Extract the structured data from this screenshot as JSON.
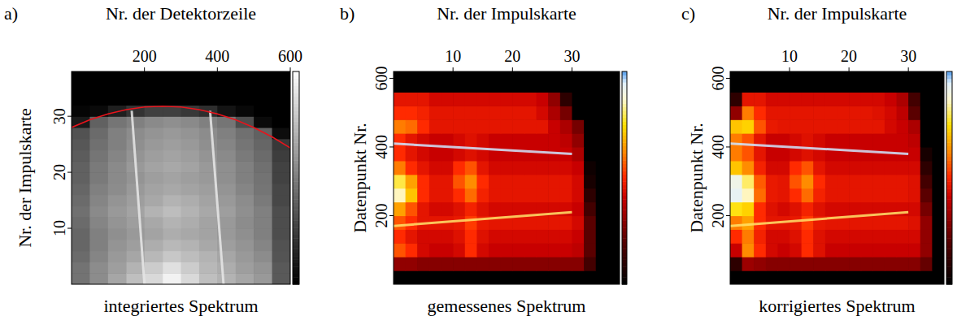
{
  "chart_data": [
    {
      "type": "heatmap",
      "label": "a)",
      "xlabel": "Nr. der Detektorzeile",
      "ylabel": "Nr. der Impulskarte",
      "title": "integriertes Spektrum",
      "xlim": [
        0,
        600
      ],
      "ylim": [
        0,
        38
      ],
      "xticks": [
        200,
        400,
        600
      ],
      "yticks": [
        10,
        20,
        30
      ],
      "zlim": [
        0,
        1
      ],
      "color": "gray",
      "x_edges": [
        0,
        50,
        100,
        150,
        200,
        250,
        300,
        350,
        400,
        450,
        500,
        550,
        600
      ],
      "y_edges": [
        0,
        2,
        4,
        6,
        8,
        10,
        12,
        14,
        16,
        18,
        20,
        22,
        24,
        26,
        28,
        30,
        32,
        34,
        36,
        38
      ],
      "z": [
        [
          0.45,
          0.55,
          0.65,
          0.75,
          0.85,
          0.95,
          0.85,
          0.75,
          0.7,
          0.65,
          0.6,
          0.35
        ],
        [
          0.45,
          0.55,
          0.62,
          0.7,
          0.8,
          0.88,
          0.8,
          0.72,
          0.68,
          0.62,
          0.58,
          0.35
        ],
        [
          0.42,
          0.52,
          0.6,
          0.65,
          0.72,
          0.78,
          0.74,
          0.7,
          0.65,
          0.6,
          0.55,
          0.33
        ],
        [
          0.4,
          0.5,
          0.58,
          0.62,
          0.68,
          0.72,
          0.7,
          0.66,
          0.62,
          0.58,
          0.52,
          0.32
        ],
        [
          0.4,
          0.5,
          0.56,
          0.6,
          0.64,
          0.68,
          0.66,
          0.64,
          0.6,
          0.56,
          0.5,
          0.3
        ],
        [
          0.42,
          0.52,
          0.58,
          0.62,
          0.66,
          0.7,
          0.68,
          0.64,
          0.6,
          0.55,
          0.5,
          0.3
        ],
        [
          0.44,
          0.54,
          0.6,
          0.64,
          0.7,
          0.74,
          0.7,
          0.66,
          0.62,
          0.56,
          0.5,
          0.3
        ],
        [
          0.42,
          0.52,
          0.58,
          0.62,
          0.66,
          0.7,
          0.68,
          0.64,
          0.6,
          0.55,
          0.48,
          0.28
        ],
        [
          0.4,
          0.5,
          0.55,
          0.6,
          0.64,
          0.66,
          0.64,
          0.62,
          0.58,
          0.52,
          0.46,
          0.28
        ],
        [
          0.38,
          0.48,
          0.54,
          0.58,
          0.62,
          0.64,
          0.62,
          0.6,
          0.56,
          0.5,
          0.45,
          0.26
        ],
        [
          0.38,
          0.48,
          0.54,
          0.6,
          0.64,
          0.66,
          0.64,
          0.6,
          0.56,
          0.5,
          0.44,
          0.26
        ],
        [
          0.36,
          0.46,
          0.52,
          0.58,
          0.62,
          0.64,
          0.62,
          0.58,
          0.54,
          0.48,
          0.42,
          0.24
        ],
        [
          0.34,
          0.44,
          0.5,
          0.56,
          0.6,
          0.62,
          0.6,
          0.56,
          0.52,
          0.46,
          0.4,
          0.22
        ],
        [
          0.32,
          0.42,
          0.5,
          0.55,
          0.58,
          0.6,
          0.58,
          0.55,
          0.5,
          0.44,
          0.38,
          0.05
        ],
        [
          0.1,
          0.38,
          0.46,
          0.5,
          0.54,
          0.56,
          0.54,
          0.5,
          0.46,
          0.3,
          0.04,
          0
        ],
        [
          0.02,
          0.04,
          0.12,
          0.2,
          0.25,
          0.25,
          0.22,
          0.18,
          0.08,
          0.03,
          0,
          0
        ],
        [
          0,
          0,
          0,
          0,
          0,
          0,
          0,
          0,
          0,
          0,
          0,
          0
        ],
        [
          0,
          0,
          0,
          0,
          0,
          0,
          0,
          0,
          0,
          0,
          0,
          0
        ],
        [
          0,
          0,
          0,
          0,
          0,
          0,
          0,
          0,
          0,
          0,
          0,
          0
        ]
      ],
      "lines": [
        {
          "x": [
            165,
            200
          ],
          "y": [
            31,
            0
          ],
          "color": "#e8e8e8"
        },
        {
          "x": [
            380,
            417
          ],
          "y": [
            31,
            0
          ],
          "color": "#e8e8e8"
        }
      ],
      "fit": {
        "x": [
          0,
          50,
          100,
          150,
          200,
          250,
          300,
          350,
          400,
          450,
          500,
          550,
          600
        ],
        "y": [
          28.0,
          29.37,
          30.43,
          31.19,
          31.65,
          31.8,
          31.65,
          31.19,
          30.43,
          29.37,
          28.0,
          26.33,
          24.35
        ],
        "color": "#e8141c"
      }
    },
    {
      "type": "heatmap",
      "label": "b)",
      "xlabel": "Nr. der Impulskarte",
      "ylabel": "Datenpunkt Nr.",
      "title": "gemessenes Spektrum",
      "xlim": [
        0,
        38
      ],
      "ylim": [
        0,
        620
      ],
      "xticks": [
        10,
        20,
        30
      ],
      "yticks": [
        200,
        400,
        600
      ],
      "zlim": [
        0,
        1
      ],
      "color": "hot",
      "x_edges": [
        0,
        2,
        4,
        6,
        8,
        10,
        12,
        14,
        16,
        18,
        20,
        22,
        24,
        26,
        28,
        30,
        32,
        34,
        36,
        38
      ],
      "y_edges": [
        0,
        40,
        80,
        120,
        160,
        200,
        240,
        280,
        320,
        360,
        400,
        440,
        480,
        520,
        560,
        600,
        620
      ],
      "z": [
        [
          0,
          0,
          0,
          0,
          0,
          0,
          0,
          0,
          0,
          0,
          0,
          0,
          0,
          0,
          0,
          0,
          0,
          0,
          0
        ],
        [
          0.3,
          0.3,
          0.28,
          0.28,
          0.28,
          0.28,
          0.28,
          0.28,
          0.28,
          0.28,
          0.28,
          0.28,
          0.28,
          0.28,
          0.28,
          0.28,
          0.15,
          0,
          0
        ],
        [
          0.55,
          0.5,
          0.42,
          0.4,
          0.4,
          0.42,
          0.5,
          0.42,
          0.4,
          0.4,
          0.4,
          0.4,
          0.4,
          0.4,
          0.4,
          0.38,
          0.2,
          0,
          0
        ],
        [
          0.5,
          0.45,
          0.42,
          0.42,
          0.42,
          0.44,
          0.5,
          0.44,
          0.42,
          0.42,
          0.42,
          0.42,
          0.42,
          0.42,
          0.42,
          0.4,
          0.2,
          0,
          0
        ],
        [
          0.55,
          0.5,
          0.45,
          0.45,
          0.45,
          0.46,
          0.52,
          0.46,
          0.45,
          0.45,
          0.45,
          0.45,
          0.45,
          0.45,
          0.45,
          0.42,
          0.2,
          0,
          0
        ],
        [
          0.65,
          0.55,
          0.45,
          0.42,
          0.42,
          0.44,
          0.48,
          0.44,
          0.42,
          0.42,
          0.42,
          0.42,
          0.42,
          0.42,
          0.42,
          0.4,
          0.15,
          0,
          0
        ],
        [
          0.85,
          0.7,
          0.5,
          0.45,
          0.45,
          0.5,
          0.58,
          0.48,
          0.45,
          0.45,
          0.45,
          0.45,
          0.45,
          0.45,
          0.45,
          0.42,
          0.1,
          0,
          0
        ],
        [
          0.78,
          0.65,
          0.5,
          0.45,
          0.45,
          0.55,
          0.62,
          0.5,
          0.45,
          0.45,
          0.45,
          0.45,
          0.45,
          0.45,
          0.45,
          0.42,
          0.05,
          0,
          0
        ],
        [
          0.6,
          0.5,
          0.45,
          0.42,
          0.42,
          0.5,
          0.55,
          0.45,
          0.42,
          0.42,
          0.42,
          0.42,
          0.42,
          0.42,
          0.42,
          0.4,
          0.03,
          0,
          0
        ],
        [
          0.5,
          0.45,
          0.42,
          0.4,
          0.4,
          0.42,
          0.44,
          0.42,
          0.4,
          0.4,
          0.4,
          0.4,
          0.4,
          0.4,
          0.4,
          0.35,
          0,
          0,
          0
        ],
        [
          0.5,
          0.45,
          0.42,
          0.4,
          0.4,
          0.42,
          0.44,
          0.42,
          0.4,
          0.4,
          0.4,
          0.4,
          0.4,
          0.4,
          0.38,
          0.3,
          0,
          0,
          0
        ],
        [
          0.6,
          0.58,
          0.5,
          0.45,
          0.45,
          0.45,
          0.45,
          0.45,
          0.45,
          0.45,
          0.45,
          0.45,
          0.45,
          0.4,
          0.35,
          0.25,
          0,
          0,
          0
        ],
        [
          0.5,
          0.5,
          0.48,
          0.45,
          0.45,
          0.45,
          0.45,
          0.45,
          0.45,
          0.45,
          0.45,
          0.45,
          0.42,
          0.35,
          0.25,
          0,
          0,
          0,
          0
        ],
        [
          0.45,
          0.45,
          0.45,
          0.42,
          0.42,
          0.42,
          0.42,
          0.42,
          0.42,
          0.42,
          0.42,
          0.42,
          0.4,
          0.3,
          0.1,
          0,
          0,
          0,
          0
        ],
        [
          0,
          0,
          0,
          0,
          0,
          0,
          0,
          0,
          0,
          0,
          0,
          0,
          0,
          0,
          0,
          0,
          0,
          0,
          0
        ],
        [
          0,
          0,
          0,
          0,
          0,
          0,
          0,
          0,
          0,
          0,
          0,
          0,
          0,
          0,
          0,
          0,
          0,
          0,
          0
        ]
      ],
      "lines": [
        {
          "x": [
            0,
            30
          ],
          "y": [
            410,
            380
          ],
          "color": "#cfe6ff"
        },
        {
          "x": [
            0,
            30
          ],
          "y": [
            170,
            210
          ],
          "color": "#ffe36a"
        }
      ]
    },
    {
      "type": "heatmap",
      "label": "c)",
      "xlabel": "Nr. der Impulskarte",
      "ylabel": "Datenpunkt Nr.",
      "title": "korrigiertes Spektrum",
      "xlim": [
        0,
        36
      ],
      "ylim": [
        0,
        620
      ],
      "xticks": [
        10,
        20,
        30
      ],
      "yticks": [
        200,
        400,
        600
      ],
      "zlim": [
        0,
        1
      ],
      "color": "hot",
      "x_edges": [
        0,
        2,
        4,
        6,
        8,
        10,
        12,
        14,
        16,
        18,
        20,
        22,
        24,
        26,
        28,
        30,
        32,
        34,
        36
      ],
      "y_edges": [
        0,
        40,
        80,
        120,
        160,
        200,
        240,
        280,
        320,
        360,
        400,
        440,
        480,
        520,
        560,
        600,
        620
      ],
      "z": [
        [
          0,
          0,
          0,
          0,
          0,
          0,
          0,
          0,
          0,
          0,
          0,
          0,
          0,
          0,
          0,
          0,
          0,
          0
        ],
        [
          0.1,
          0.32,
          0.3,
          0.28,
          0.28,
          0.28,
          0.28,
          0.28,
          0.28,
          0.28,
          0.28,
          0.28,
          0.28,
          0.28,
          0.28,
          0.28,
          0.22,
          0
        ],
        [
          0.4,
          0.62,
          0.5,
          0.42,
          0.4,
          0.42,
          0.5,
          0.44,
          0.4,
          0.4,
          0.4,
          0.4,
          0.4,
          0.4,
          0.4,
          0.4,
          0.3,
          0
        ],
        [
          0.5,
          0.6,
          0.48,
          0.42,
          0.42,
          0.44,
          0.5,
          0.44,
          0.42,
          0.42,
          0.42,
          0.42,
          0.42,
          0.42,
          0.42,
          0.42,
          0.3,
          0
        ],
        [
          0.6,
          0.65,
          0.5,
          0.45,
          0.45,
          0.46,
          0.52,
          0.46,
          0.45,
          0.45,
          0.45,
          0.45,
          0.45,
          0.45,
          0.45,
          0.44,
          0.3,
          0
        ],
        [
          0.75,
          0.72,
          0.5,
          0.44,
          0.42,
          0.44,
          0.48,
          0.44,
          0.42,
          0.42,
          0.42,
          0.42,
          0.42,
          0.42,
          0.42,
          0.42,
          0.25,
          0
        ],
        [
          0.92,
          0.85,
          0.58,
          0.46,
          0.45,
          0.5,
          0.58,
          0.48,
          0.45,
          0.45,
          0.45,
          0.45,
          0.45,
          0.45,
          0.45,
          0.44,
          0.2,
          0
        ],
        [
          0.9,
          0.8,
          0.56,
          0.46,
          0.45,
          0.55,
          0.62,
          0.5,
          0.45,
          0.45,
          0.45,
          0.45,
          0.45,
          0.45,
          0.45,
          0.44,
          0.15,
          0
        ],
        [
          0.7,
          0.62,
          0.48,
          0.42,
          0.42,
          0.5,
          0.55,
          0.45,
          0.42,
          0.42,
          0.42,
          0.42,
          0.42,
          0.42,
          0.42,
          0.42,
          0.1,
          0
        ],
        [
          0.6,
          0.55,
          0.45,
          0.4,
          0.4,
          0.42,
          0.44,
          0.42,
          0.4,
          0.4,
          0.4,
          0.4,
          0.4,
          0.4,
          0.4,
          0.4,
          0.05,
          0
        ],
        [
          0.6,
          0.55,
          0.45,
          0.4,
          0.4,
          0.42,
          0.44,
          0.42,
          0.4,
          0.4,
          0.4,
          0.4,
          0.4,
          0.4,
          0.4,
          0.38,
          0,
          0
        ],
        [
          0.7,
          0.72,
          0.55,
          0.46,
          0.45,
          0.45,
          0.45,
          0.45,
          0.45,
          0.45,
          0.45,
          0.45,
          0.45,
          0.42,
          0.4,
          0.35,
          0,
          0
        ],
        [
          0.3,
          0.6,
          0.5,
          0.45,
          0.45,
          0.45,
          0.45,
          0.45,
          0.45,
          0.45,
          0.45,
          0.45,
          0.44,
          0.42,
          0.38,
          0.2,
          0,
          0
        ],
        [
          0.1,
          0.45,
          0.45,
          0.42,
          0.42,
          0.42,
          0.42,
          0.42,
          0.42,
          0.42,
          0.42,
          0.42,
          0.42,
          0.4,
          0.35,
          0.15,
          0,
          0
        ],
        [
          0,
          0,
          0,
          0,
          0,
          0,
          0,
          0,
          0,
          0,
          0,
          0,
          0,
          0,
          0,
          0,
          0,
          0
        ],
        [
          0,
          0,
          0,
          0,
          0,
          0,
          0,
          0,
          0,
          0,
          0,
          0,
          0,
          0,
          0,
          0,
          0,
          0
        ]
      ],
      "lines": [
        {
          "x": [
            0,
            30
          ],
          "y": [
            410,
            380
          ],
          "color": "#cfe6ff"
        },
        {
          "x": [
            0,
            30
          ],
          "y": [
            170,
            210
          ],
          "color": "#ffe36a"
        }
      ]
    }
  ]
}
